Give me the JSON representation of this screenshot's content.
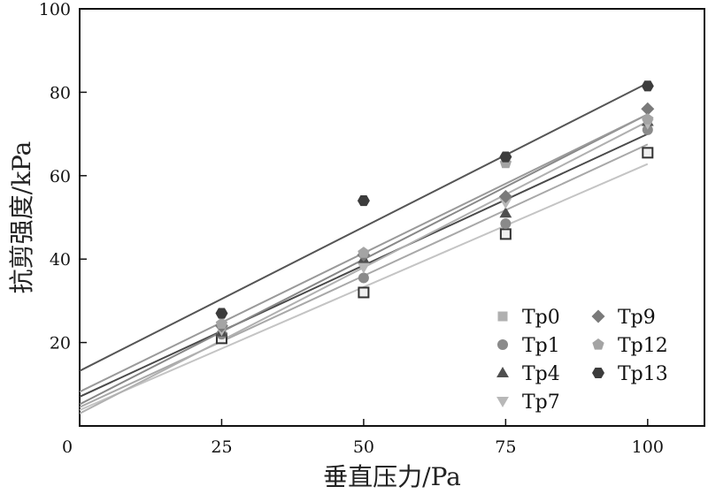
{
  "chart_data": {
    "type": "scatter",
    "title": "",
    "xlabel": "垂直压力/Pa",
    "ylabel": "抗剪强度/kPa",
    "xlim": [
      0,
      110
    ],
    "ylim": [
      0,
      100
    ],
    "x_ticks": [
      "0",
      "25",
      "50",
      "75",
      "100"
    ],
    "y_ticks": [
      "20",
      "40",
      "60",
      "80",
      "100"
    ],
    "grid": false,
    "legend_position": "bottom-right",
    "x": [
      25,
      50,
      75,
      100
    ],
    "series": [
      {
        "name": "Tp0",
        "marker": "square-open",
        "color": "#333333",
        "values": [
          21,
          32,
          46,
          65.5
        ],
        "fit": {
          "intercept": 3.8,
          "slope": 0.59
        },
        "fit_color": "#c4c4c4"
      },
      {
        "name": "Tp1",
        "marker": "circle",
        "color": "#8a8a8a",
        "values": [
          22,
          35.5,
          48.5,
          71
        ],
        "fit": {
          "intercept": 4.5,
          "slope": 0.63
        },
        "fit_color": "#a8a8a8"
      },
      {
        "name": "Tp4",
        "marker": "triangle",
        "color": "#4f4f4f",
        "values": [
          22.5,
          40,
          51,
          73
        ],
        "fit": {
          "intercept": 7.0,
          "slope": 0.63
        },
        "fit_color": "#4a4a4a"
      },
      {
        "name": "Tp7",
        "marker": "triangle-down",
        "color": "#b8b8b8",
        "values": [
          23,
          38,
          53.5,
          72.5
        ],
        "fit": {
          "intercept": 3.0,
          "slope": 0.7
        },
        "fit_color": "#b0b0b0"
      },
      {
        "name": "Tp9",
        "marker": "diamond",
        "color": "#7a7a7a",
        "values": [
          24,
          41,
          55,
          76
        ],
        "fit": {
          "intercept": 5.2,
          "slope": 0.695
        },
        "fit_color": "#888888"
      },
      {
        "name": "Tp12",
        "marker": "pentagon",
        "color": "#a4a4a4",
        "values": [
          24.5,
          41.5,
          63,
          73.5
        ],
        "fit": {
          "intercept": 8.2,
          "slope": 0.665
        },
        "fit_color": "#9a9a9a"
      },
      {
        "name": "Tp13",
        "marker": "hexagon",
        "color": "#3c3c3c",
        "values": [
          27,
          54,
          64.5,
          81.5
        ],
        "fit": {
          "intercept": 13.2,
          "slope": 0.69
        },
        "fit_color": "#555555"
      }
    ]
  }
}
